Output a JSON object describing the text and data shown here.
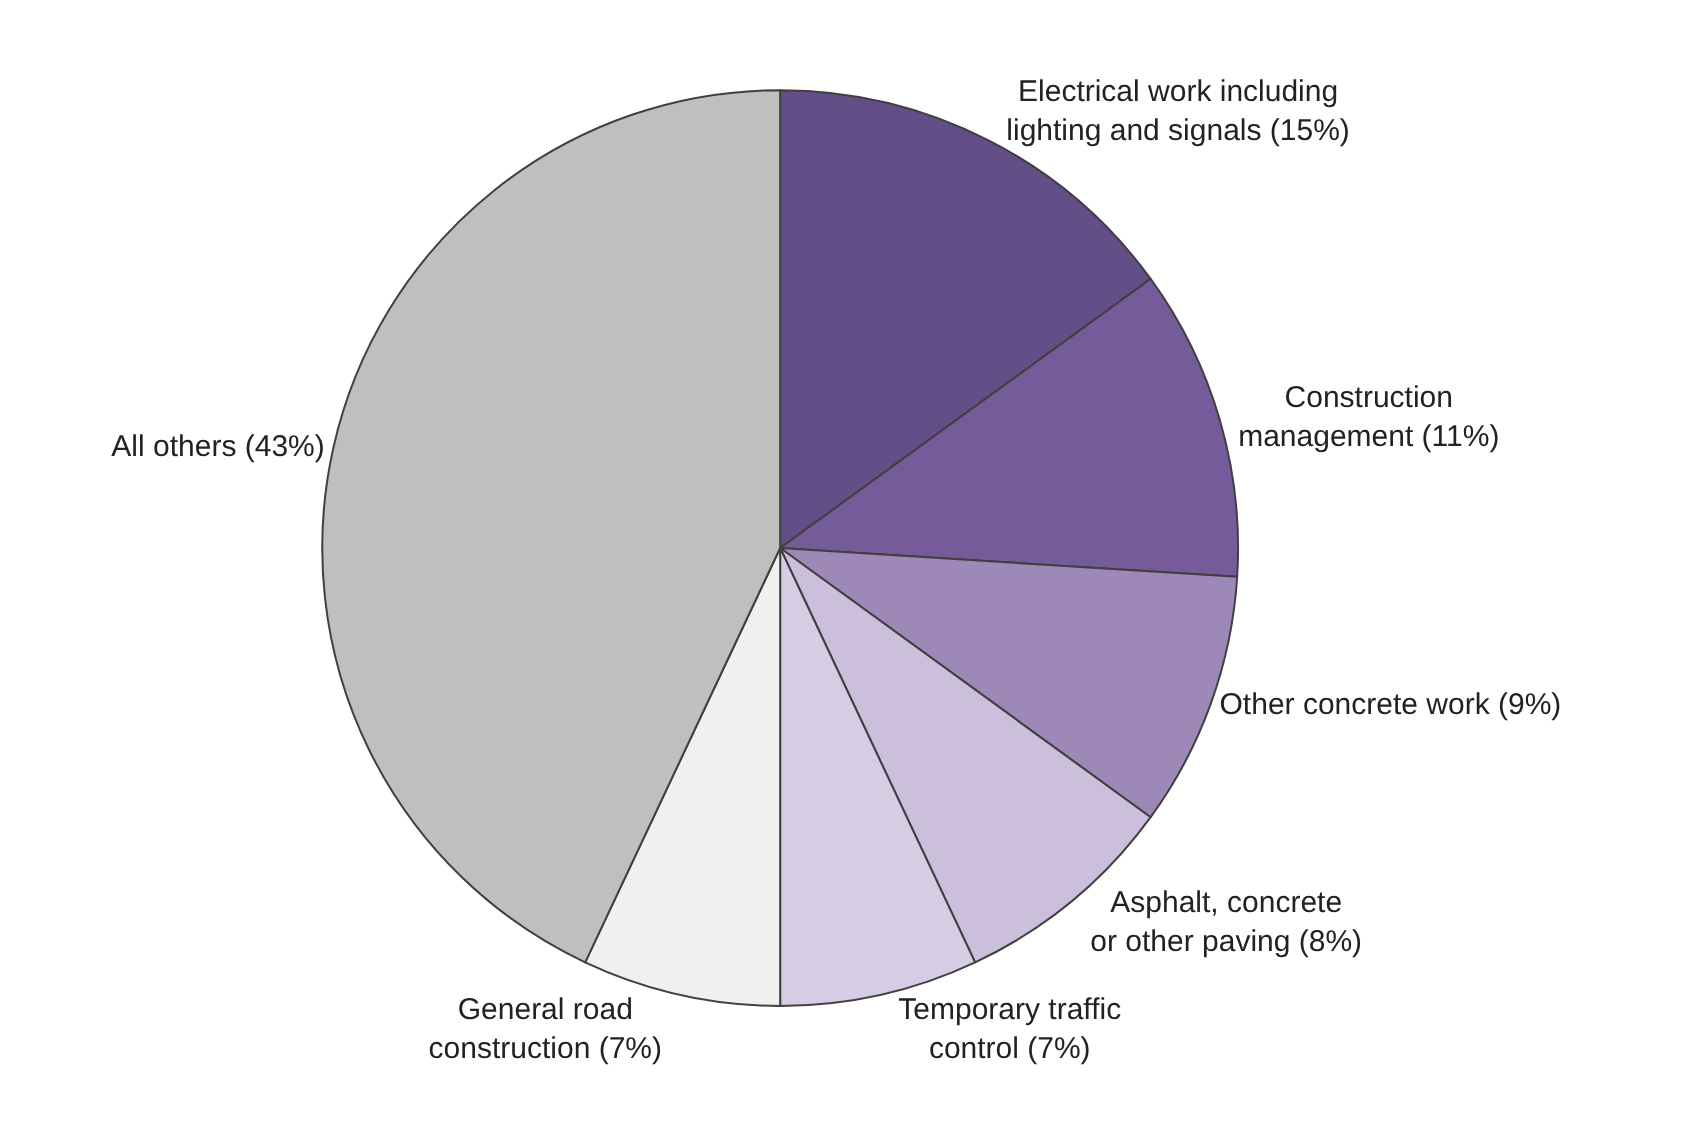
{
  "chart_data": {
    "type": "pie",
    "categories": [
      "Electrical work including\nlighting and signals (15%)",
      "Construction\nmanagement (11%)",
      "Other concrete work (9%)",
      "Asphalt, concrete\nor other paving (8%)",
      "Temporary traffic\ncontrol (7%)",
      "General road\nconstruction (7%)",
      "All others (43%)"
    ],
    "values": [
      15,
      11,
      9,
      8,
      7,
      7,
      43
    ],
    "colors": [
      "#634e87",
      "#765b9b",
      "#9d88b8",
      "#cbbfdc",
      "#d6cce4",
      "#f0f0f0",
      "#bfbfbf"
    ],
    "legend": false
  }
}
